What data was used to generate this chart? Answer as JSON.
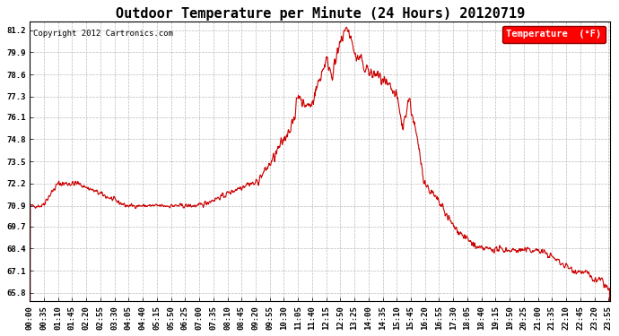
{
  "title": "Outdoor Temperature per Minute (24 Hours) 20120719",
  "copyright_text": "Copyright 2012 Cartronics.com",
  "legend_label": "Temperature  (°F)",
  "yticks": [
    65.8,
    67.1,
    68.4,
    69.7,
    70.9,
    72.2,
    73.5,
    74.8,
    76.1,
    77.3,
    78.6,
    79.9,
    81.2
  ],
  "ymin": 65.3,
  "ymax": 81.7,
  "line_color": "#cc0000",
  "background_color": "#ffffff",
  "grid_color": "#bbbbbb",
  "title_fontsize": 11,
  "tick_fontsize": 6.5,
  "copyright_fontsize": 6.5
}
